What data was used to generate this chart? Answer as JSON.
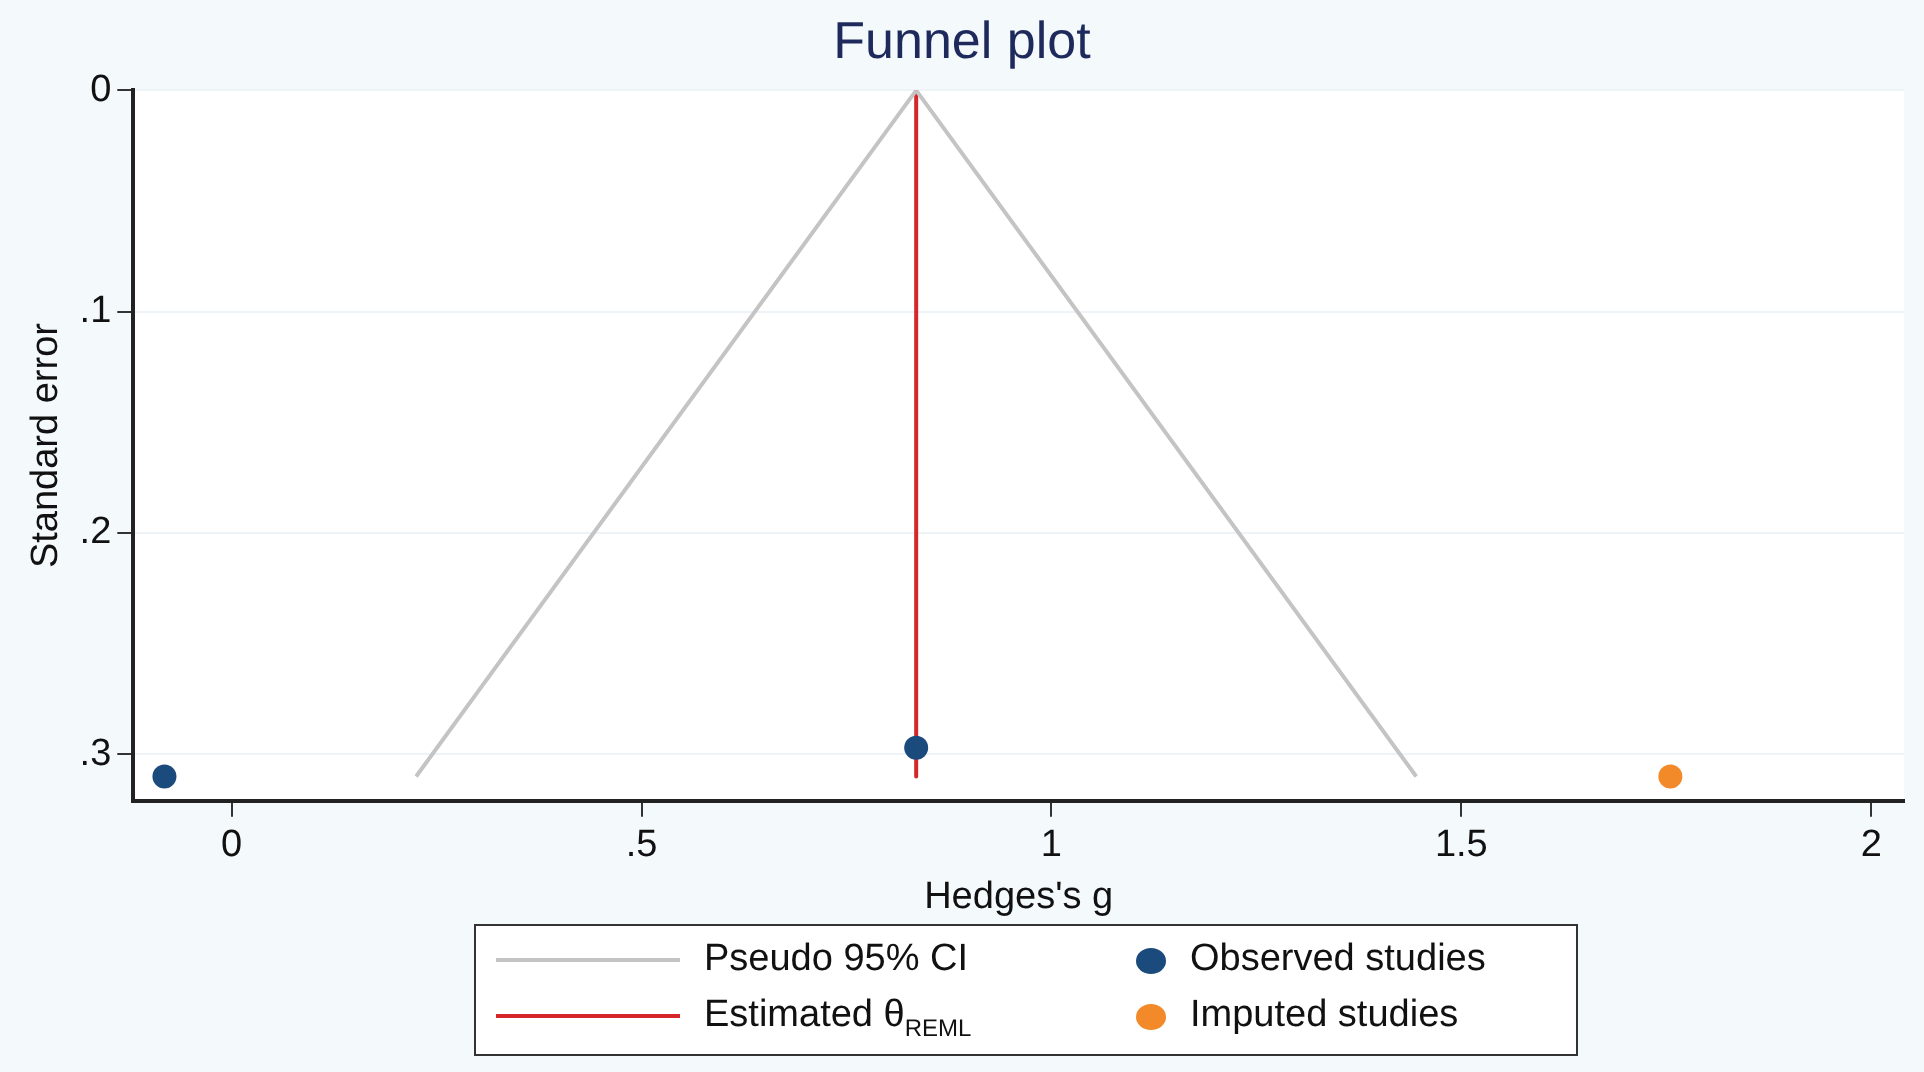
{
  "chart_data": {
    "type": "scatter",
    "title": "Funnel plot",
    "xlabel": "Hedges's g",
    "ylabel": "Standard error",
    "xlim": [
      -0.12,
      2.04
    ],
    "xticks": [
      0,
      {
        "value": 0.5,
        "label": ".5"
      },
      1,
      1.5,
      2
    ],
    "ylim": [
      0.321,
      0
    ],
    "yticks": [
      0,
      {
        "value": 0.1,
        "label": ".1"
      },
      {
        "value": 0.2,
        "label": ".2"
      },
      {
        "value": 0.3,
        "label": ".3"
      }
    ],
    "grid": "y",
    "legend": "bottom",
    "marker": "circle",
    "series": [
      {
        "name": "Pseudo 95% CI",
        "type": "line",
        "marker": "none",
        "color": "#c4c4c4",
        "x": [
          0.225,
          0.835,
          1.445
        ],
        "values": [
          0.31,
          0,
          0.31
        ]
      },
      {
        "name": "Estimated θ$_{REML}$",
        "type": "line",
        "marker": "none",
        "color": "#d62728",
        "x": [
          0.835,
          0.835
        ],
        "values": [
          0,
          0.31
        ]
      },
      {
        "name": "Observed studies",
        "type": "scatter",
        "color": "#1b4a7c",
        "x": [
          -0.082,
          0.835
        ],
        "values": [
          0.31,
          0.297
        ]
      },
      {
        "name": "Imputed studies",
        "type": "scatter",
        "color": "#f28a2a",
        "x": [
          1.755
        ],
        "values": [
          0.31
        ]
      }
    ]
  }
}
